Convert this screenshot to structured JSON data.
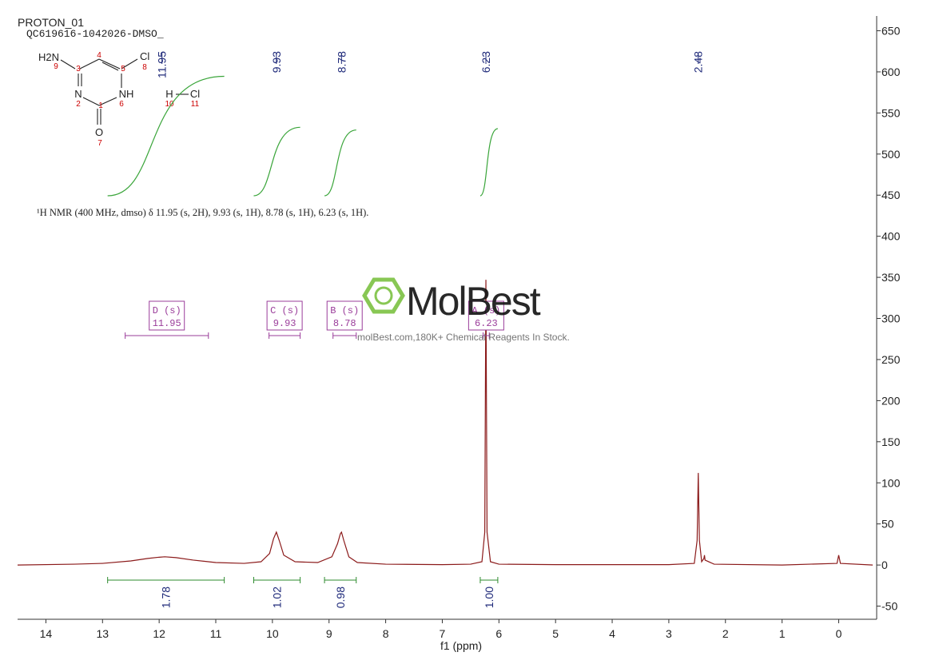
{
  "header": {
    "title": "PROTON_01",
    "sample": "QC619616-1042026-DMSO_"
  },
  "structure": {
    "atoms": [
      "H2N",
      "Cl",
      "N",
      "NH",
      "O",
      "H",
      "Cl"
    ],
    "numbers": [
      "9",
      "4",
      "3",
      "5",
      "8",
      "2",
      "1",
      "6",
      "7",
      "10",
      "11"
    ]
  },
  "description": "¹H NMR (400 MHz, dmso) δ 11.95 (s, 2H), 9.93 (s, 1H), 8.78 (s, 1H), 6.23 (s, 1H).",
  "watermark": {
    "brand": "MolBest",
    "tagline": "molBest.com,180K+ Chemical Reagents In Stock."
  },
  "chart_data": {
    "type": "line",
    "color": "#8b1a1a",
    "x": [
      14.5,
      13.5,
      13.0,
      12.5,
      12.2,
      12.0,
      11.9,
      11.7,
      11.4,
      11.0,
      10.5,
      10.2,
      10.05,
      9.98,
      9.93,
      9.88,
      9.8,
      9.6,
      9.2,
      8.95,
      8.85,
      8.8,
      8.78,
      8.74,
      8.65,
      8.5,
      8.0,
      7.0,
      6.5,
      6.3,
      6.25,
      6.23,
      6.21,
      6.15,
      6.0,
      5.0,
      3.0,
      2.55,
      2.5,
      2.48,
      2.46,
      2.42,
      2.38,
      2.37,
      2.36,
      2.2,
      1.0,
      0.03,
      0.0,
      -0.03,
      -0.6
    ],
    "values": [
      0,
      1,
      2,
      5,
      8,
      9.5,
      10,
      9,
      6,
      3,
      2,
      4,
      14,
      32,
      40,
      30,
      12,
      4,
      3,
      10,
      26,
      38,
      40,
      30,
      10,
      3,
      1,
      0.5,
      1,
      4,
      40,
      347,
      40,
      4,
      1,
      0.5,
      0.5,
      2,
      30,
      112,
      30,
      4,
      8,
      12,
      6,
      1,
      0,
      2,
      12,
      2,
      0
    ],
    "xlim": [
      14.5,
      -0.6
    ],
    "ylim": [
      -66,
      668
    ],
    "xticks": [
      14,
      13,
      12,
      11,
      10,
      9,
      8,
      7,
      6,
      5,
      4,
      3,
      2,
      1,
      0
    ],
    "yticks": [
      -50,
      0,
      50,
      100,
      150,
      200,
      250,
      300,
      350,
      400,
      450,
      500,
      550,
      600,
      650
    ],
    "xlabel": "f1 (ppm)",
    "peaks": [
      11.95,
      9.93,
      8.78,
      6.23,
      2.48
    ],
    "integrals": [
      {
        "from": 12.91,
        "to": 10.85,
        "value": 1.78
      },
      {
        "from": 10.33,
        "to": 9.51,
        "value": 1.02
      },
      {
        "from": 9.08,
        "to": 8.52,
        "value": 0.98
      },
      {
        "from": 6.33,
        "to": 6.02,
        "value": 1,
        "label": "1.00"
      }
    ],
    "multiplets": [
      {
        "name": "D (s)",
        "shift": 11.95,
        "from": 12.6,
        "to": 11.13
      },
      {
        "name": "C (s)",
        "shift": 9.93,
        "from": 10.06,
        "to": 9.51
      },
      {
        "name": "B (s)",
        "shift": 8.78,
        "from": 8.93,
        "to": 8.52
      },
      {
        "name": "A (s)",
        "shift": 6.23,
        "from": 6.28,
        "to": 6.17
      }
    ]
  }
}
